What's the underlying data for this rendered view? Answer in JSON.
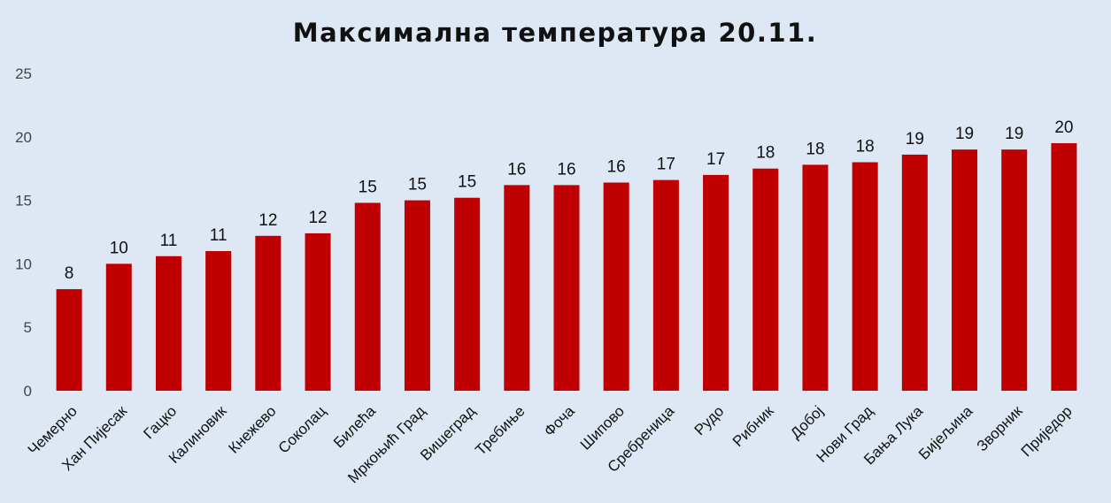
{
  "chart_data": {
    "type": "bar",
    "title": "Максимална температура 20.11.",
    "categories": [
      "Чемерно",
      "Хан Пијесак",
      "Гацко",
      "Калиновик",
      "Кнежево",
      "Соколац",
      "Билећа",
      "Мркоњић Град",
      "Вишеград",
      "Требиње",
      "Фоча",
      "Шипово",
      "Сребреница",
      "Рудо",
      "Рибник",
      "Добој",
      "Нови Град",
      "Бања Лука",
      "Бијељина",
      "Зворник",
      "Приједор"
    ],
    "values": [
      8.0,
      10.0,
      10.6,
      11.0,
      12.2,
      12.4,
      14.8,
      15.0,
      15.2,
      16.2,
      16.2,
      16.4,
      16.6,
      17.0,
      17.5,
      17.8,
      18.0,
      18.6,
      19.0,
      19.0,
      19.5
    ],
    "data_labels": [
      "8",
      "10",
      "11",
      "11",
      "12",
      "12",
      "15",
      "15",
      "15",
      "16",
      "16",
      "16",
      "17",
      "17",
      "18",
      "18",
      "18",
      "19",
      "19",
      "19",
      "20"
    ],
    "yticks": [
      0,
      5,
      10,
      15,
      20,
      25
    ],
    "ylim": [
      0,
      25
    ],
    "grid": false,
    "legend": "none",
    "bar_color": "#c00000"
  }
}
